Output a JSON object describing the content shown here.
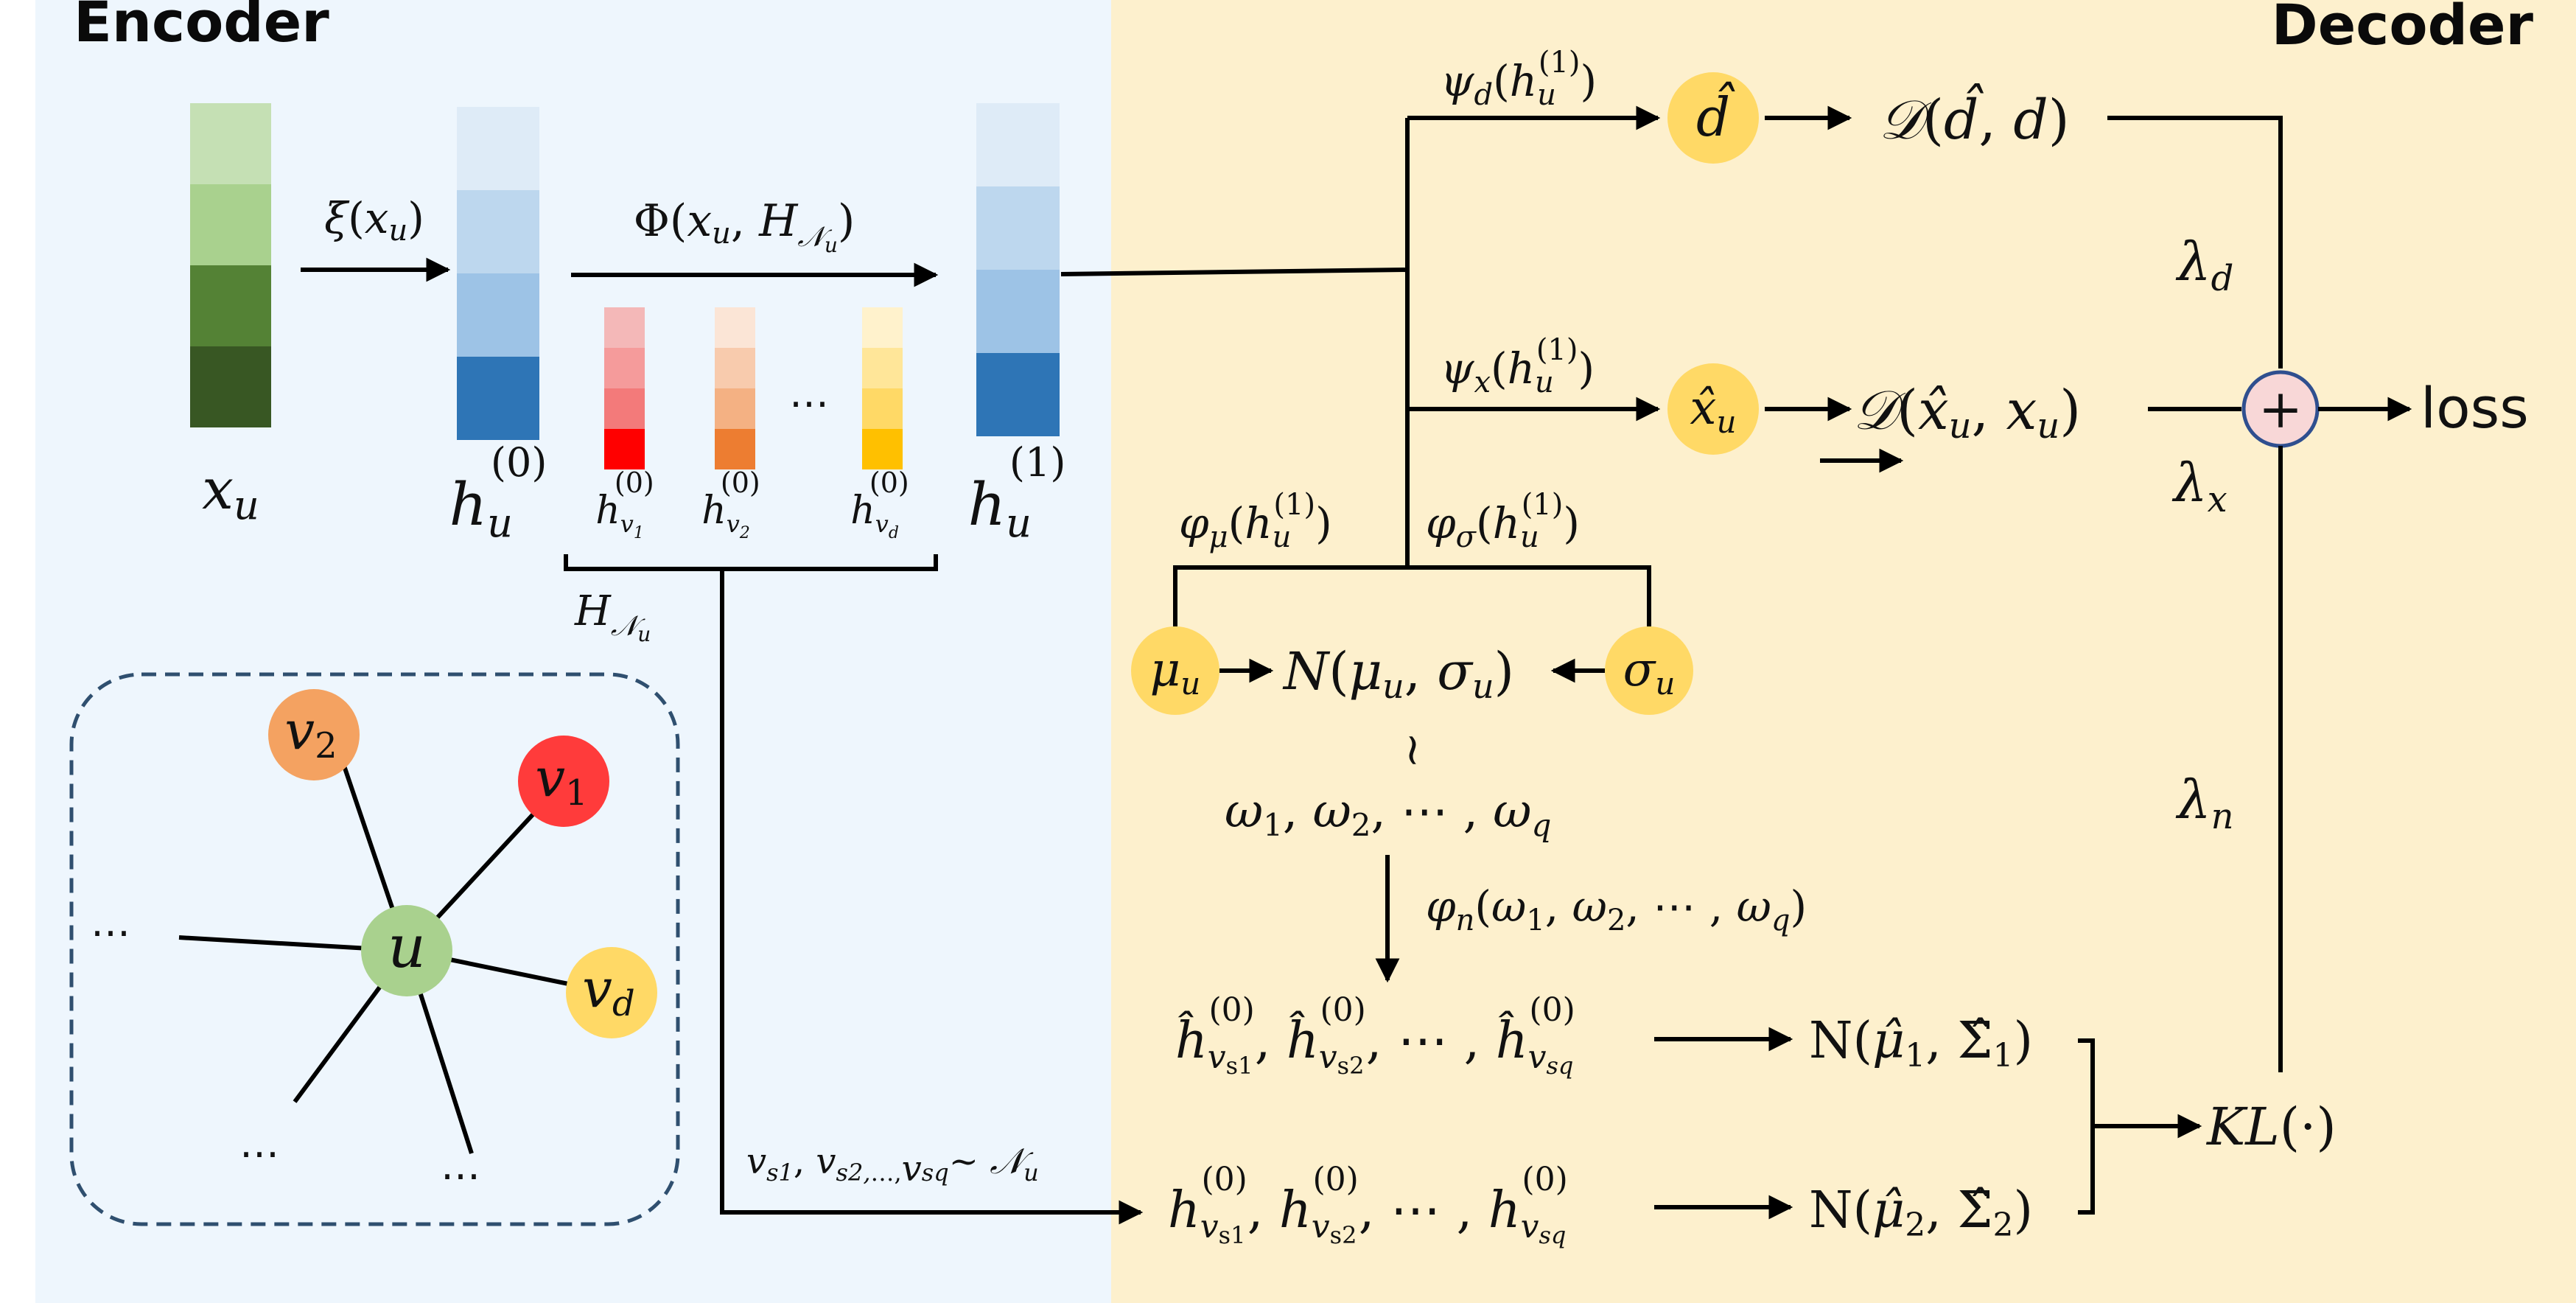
{
  "panels": {
    "encoder": {
      "title": "Encoder",
      "bg": "#eef6fd"
    },
    "decoder": {
      "title": "Decoder",
      "bg": "#fdf0cd"
    }
  },
  "colors": {
    "green": [
      "#c5e0b4",
      "#a9d18e",
      "#548235",
      "#385723"
    ],
    "blue": [
      "#deebf7",
      "#bdd7ee",
      "#9dc3e6",
      "#2e75b6"
    ],
    "red": [
      "#f4b8b8",
      "#f59b9b",
      "#f37a7a",
      "#ff0000"
    ],
    "orange": [
      "#fbe5d6",
      "#f8cbad",
      "#f4b183",
      "#ed7d31"
    ],
    "yellow": [
      "#fff2cc",
      "#ffe699",
      "#ffd966",
      "#ffc000"
    ],
    "node_yellow": "#ffd966",
    "node_green": "#a9d18e",
    "node_orange": "#f4a261",
    "node_red": "#ff3b3b",
    "plus_fill": "#f8d7d7",
    "plus_stroke": "#2f4f8f",
    "dash_stroke": "#2f4f6f"
  },
  "encoder": {
    "labels": {
      "xu": "x_u",
      "h0": "h_u^(0)",
      "h1": "h_u^(1)",
      "hv1": "h_v1^(0)",
      "hv2": "h_v2^(0)",
      "hvd": "h_vd^(0)",
      "ellipsis": "…",
      "HNu": "H_Nu",
      "xi": "ξ(x_u)",
      "phi": "Φ(x_u, H_Nu)",
      "sampling": "v_s1, v_s2,…, v_sq ~ N_u"
    },
    "graph": {
      "u": "u",
      "v1": "v_1",
      "v2": "v_2",
      "vd": "v_d",
      "dots": [
        "…",
        "…",
        "…"
      ]
    }
  },
  "decoder": {
    "psi_d": "ψ_d(h_u^(1))",
    "psi_x": "ψ_x(h_u^(1))",
    "phi_mu": "φ_μ(h_u^(1))",
    "phi_sigma": "φ_σ(h_u^(1))",
    "d_hat": "d̂",
    "x_hat": "x̂_u",
    "mu": "μ_u",
    "sigma": "σ_u",
    "normal": "N(μ_u, σ_u)",
    "tilde": "~",
    "omegas": "ω_1, ω_2, ⋯, ω_q",
    "phi_n": "φ_n(ω_1, ω_2, ⋯, ω_q)",
    "h_hat_row": "ĥ_vs1^(0), ĥ_vs2^(0), ⋯, ĥ_vsq^(0)",
    "h_row": "h_vs1^(0), h_vs2^(0), ⋯, h_vsq^(0)",
    "N1": "N(μ̂_1, Σ̂_1)",
    "N2": "N(μ̂_2, Σ̂_2)",
    "KL": "KL(·)",
    "D_d": "D(d̂, d)",
    "D_x": "D(x̂_u, x_u)",
    "lambda_d": "λ_d",
    "lambda_x": "λ_x",
    "lambda_n": "λ_n",
    "plus": "+",
    "loss": "loss"
  }
}
